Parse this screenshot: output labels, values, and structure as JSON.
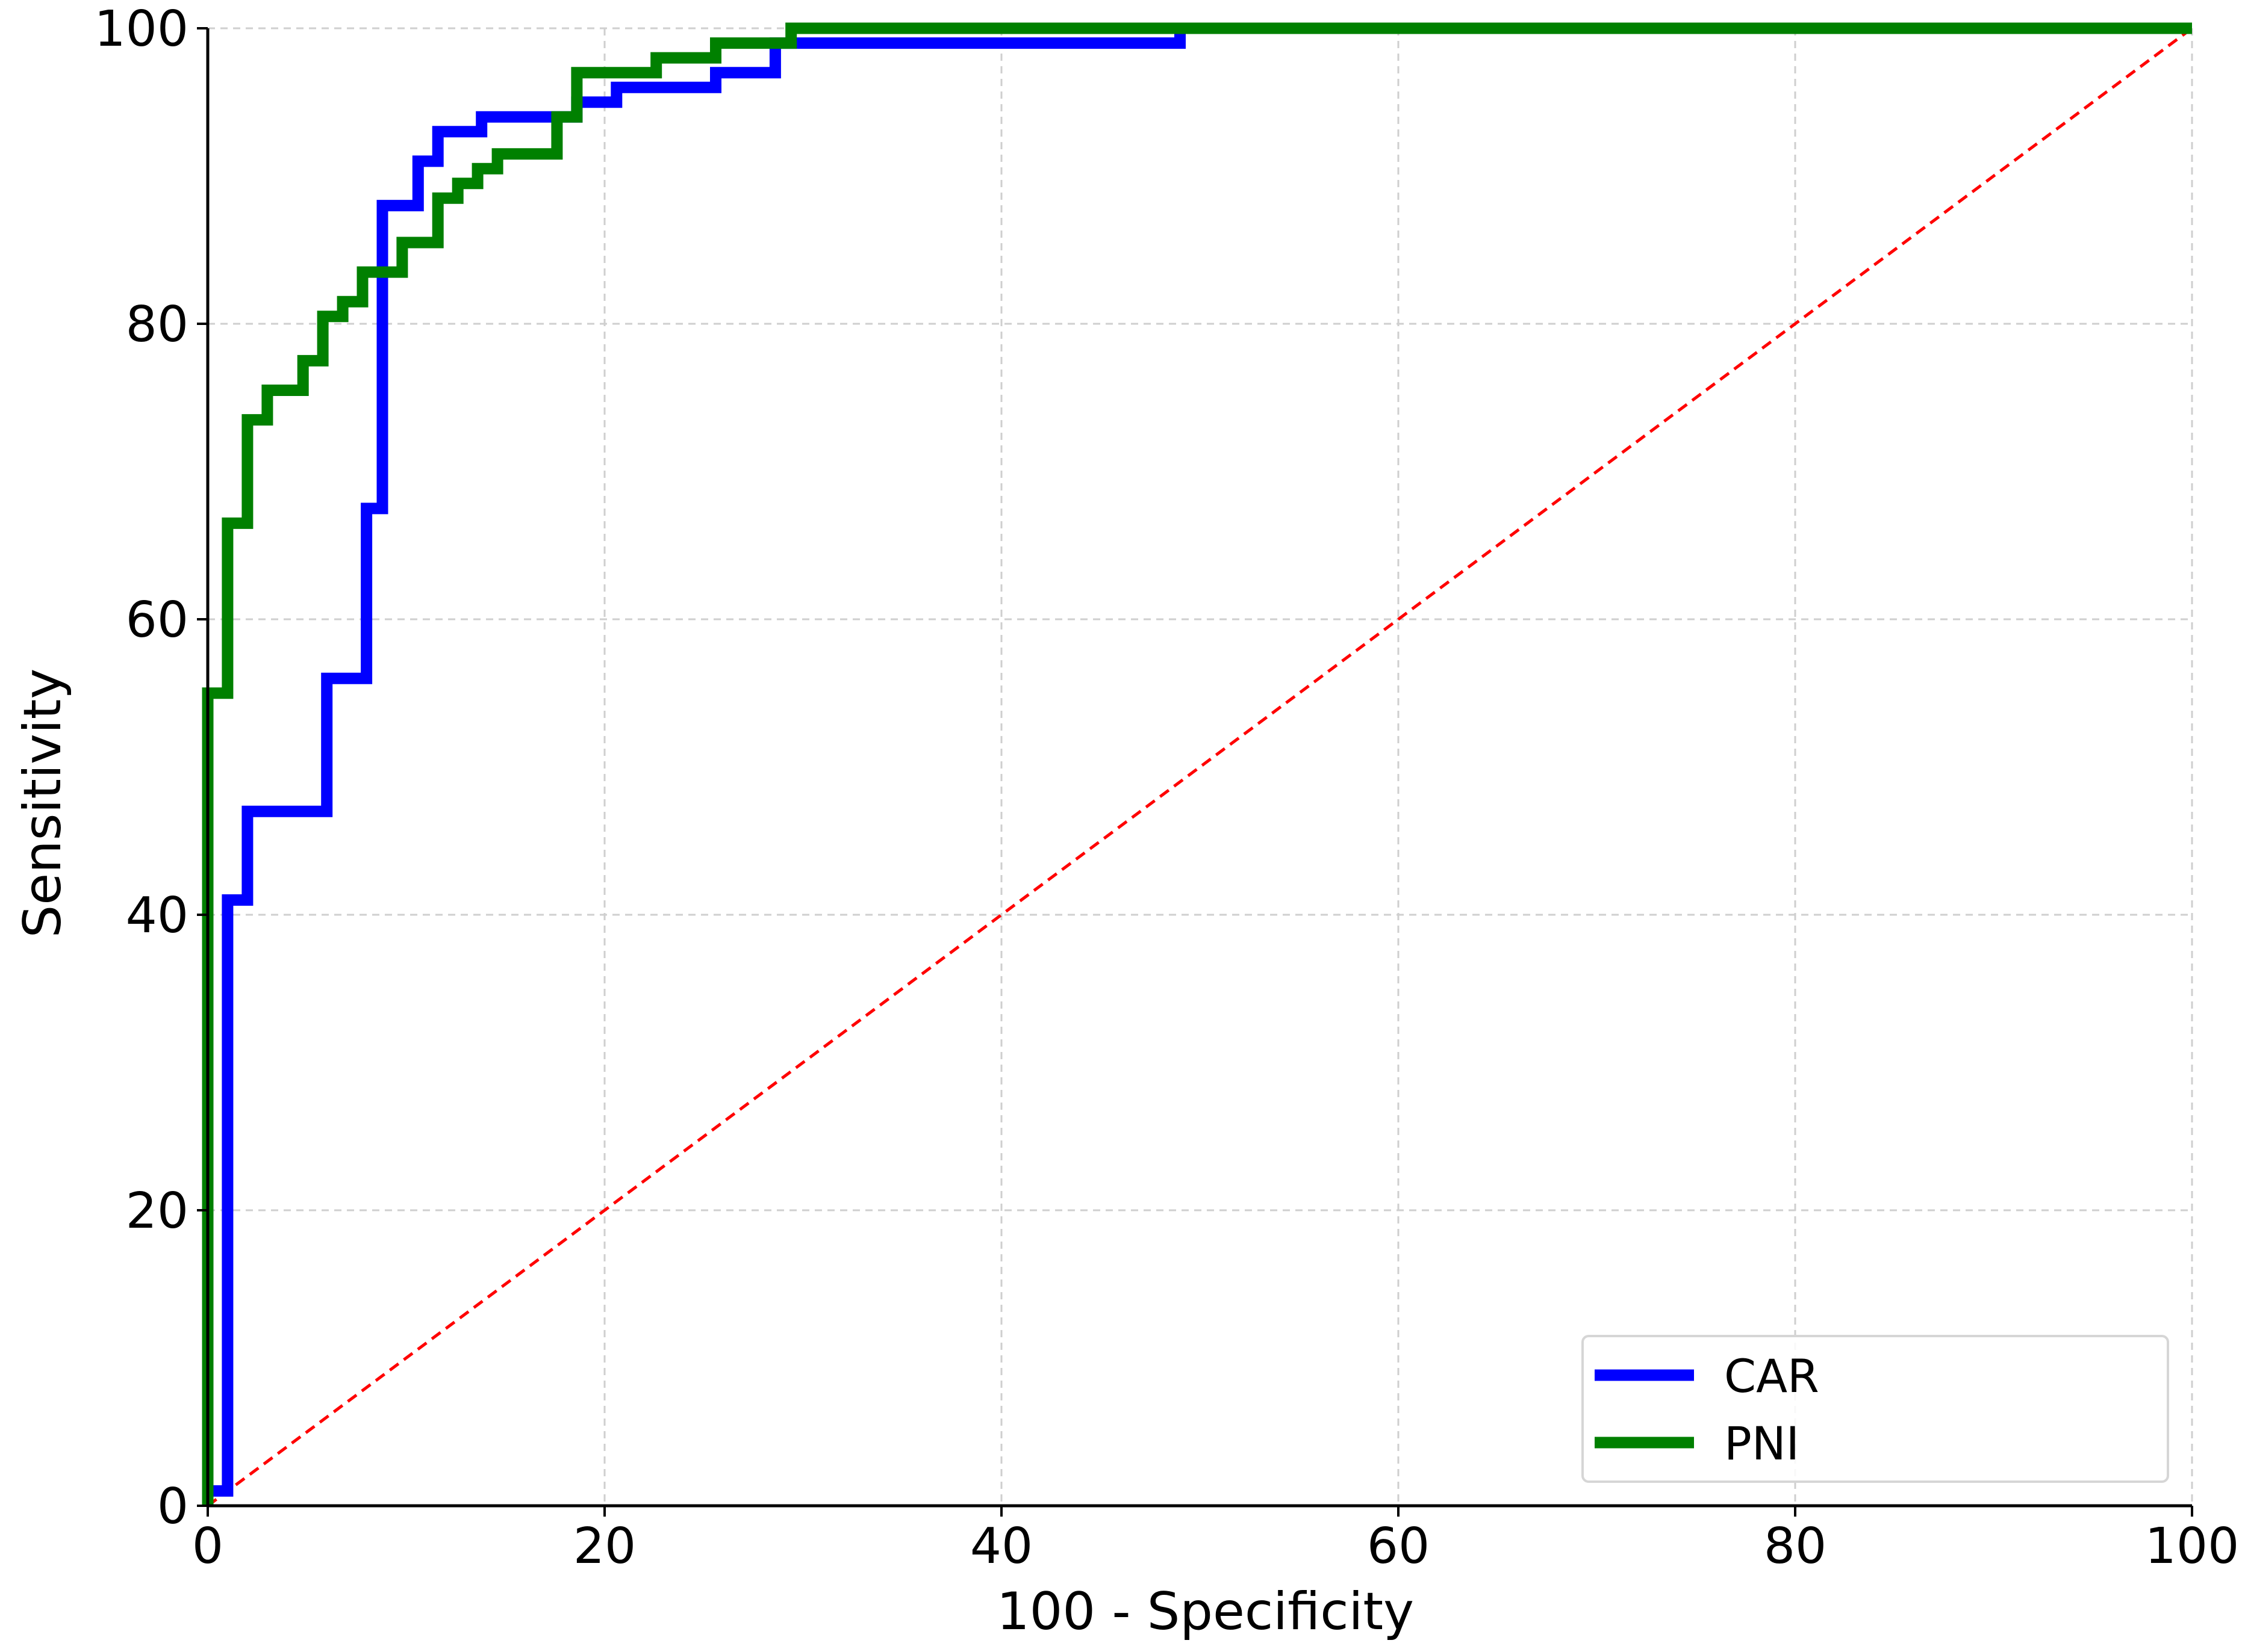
{
  "chart_data": {
    "type": "line",
    "title": "",
    "xlabel": "100 - Specificity",
    "ylabel": "Sensitivity",
    "xlim": [
      0,
      100
    ],
    "ylim": [
      0,
      100
    ],
    "xticks": [
      0,
      20,
      40,
      60,
      80,
      100
    ],
    "yticks": [
      0,
      20,
      40,
      60,
      80,
      100
    ],
    "grid": true,
    "legend_position": "bottom-right",
    "series": [
      {
        "name": "CAR",
        "color": "#0000ff",
        "step": true,
        "points": [
          [
            0,
            0
          ],
          [
            0,
            1
          ],
          [
            1,
            1
          ],
          [
            1,
            41
          ],
          [
            2,
            41
          ],
          [
            2,
            47
          ],
          [
            6,
            47
          ],
          [
            6,
            56
          ],
          [
            8,
            56
          ],
          [
            8,
            67.5
          ],
          [
            8.8,
            67.5
          ],
          [
            8.8,
            88
          ],
          [
            10.6,
            88
          ],
          [
            10.6,
            91
          ],
          [
            11.6,
            91
          ],
          [
            11.6,
            93
          ],
          [
            13.8,
            93
          ],
          [
            13.8,
            94
          ],
          [
            18.6,
            94
          ],
          [
            18.6,
            95
          ],
          [
            20.6,
            95
          ],
          [
            20.6,
            96
          ],
          [
            25.6,
            96
          ],
          [
            25.6,
            97
          ],
          [
            28.6,
            97
          ],
          [
            28.6,
            99
          ],
          [
            49,
            99
          ],
          [
            49,
            100
          ],
          [
            100,
            100
          ]
        ]
      },
      {
        "name": "PNI",
        "color": "#008000",
        "step": true,
        "points": [
          [
            0,
            0
          ],
          [
            0,
            55
          ],
          [
            1,
            55
          ],
          [
            1,
            66.5
          ],
          [
            2,
            66.5
          ],
          [
            2,
            73.5
          ],
          [
            3,
            73.5
          ],
          [
            3,
            75.5
          ],
          [
            4.8,
            75.5
          ],
          [
            4.8,
            77.5
          ],
          [
            5.8,
            77.5
          ],
          [
            5.8,
            80.5
          ],
          [
            6.8,
            80.5
          ],
          [
            6.8,
            81.5
          ],
          [
            7.8,
            81.5
          ],
          [
            7.8,
            83.5
          ],
          [
            9.8,
            83.5
          ],
          [
            9.8,
            85.5
          ],
          [
            11.6,
            85.5
          ],
          [
            11.6,
            88.5
          ],
          [
            12.6,
            88.5
          ],
          [
            12.6,
            89.5
          ],
          [
            13.6,
            89.5
          ],
          [
            13.6,
            90.5
          ],
          [
            14.6,
            90.5
          ],
          [
            14.6,
            91.5
          ],
          [
            17.6,
            91.5
          ],
          [
            17.6,
            94
          ],
          [
            18.6,
            94
          ],
          [
            18.6,
            97
          ],
          [
            22.6,
            97
          ],
          [
            22.6,
            98
          ],
          [
            25.6,
            98
          ],
          [
            25.6,
            99
          ],
          [
            29.4,
            99
          ],
          [
            29.4,
            100
          ],
          [
            100,
            100
          ]
        ]
      }
    ],
    "reference_line": {
      "points": [
        [
          0,
          0
        ],
        [
          100,
          100
        ]
      ],
      "color": "#ff0000",
      "style": "dashed"
    }
  }
}
